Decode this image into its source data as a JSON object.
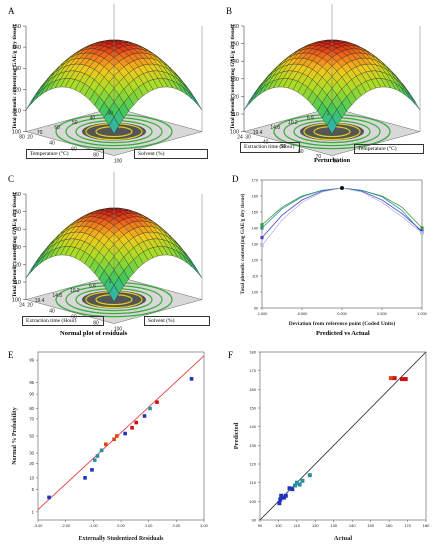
{
  "panels": {
    "A": {
      "letter": "A",
      "zlabel": "Total phenolic content(mg GAE/g dry tissue)",
      "zticks": [
        "150",
        "140",
        "130",
        "120",
        "110",
        "100"
      ],
      "left_label": "Temperature (°C)",
      "right_label": "Solvent (%)",
      "left_ticks": [
        "80",
        "70",
        "60",
        "50",
        "40",
        "30"
      ],
      "right_ticks": [
        "20",
        "40",
        "60",
        "80",
        "100"
      ]
    },
    "B": {
      "letter": "B",
      "zlabel": "Total phenolic content(mg GAE/g dry tissue)",
      "zticks": [
        "160",
        "150",
        "140",
        "130",
        "120",
        "110",
        "100"
      ],
      "left_label": "Extraction time (Hour)",
      "right_label": "Temperature (°C)",
      "left_ticks": [
        "24",
        "19.4",
        "14.8",
        "10.2",
        "5.6",
        "1"
      ],
      "right_ticks": [
        "30",
        "40",
        "50",
        "60",
        "70",
        "80"
      ],
      "caption": "Perturbation"
    },
    "C": {
      "letter": "C",
      "zlabel": "Total phenolic content(mg GAE/g dry tissue)",
      "zticks": [
        "160",
        "150",
        "140",
        "130",
        "120",
        "110",
        "100"
      ],
      "left_label": "Extraction time (Hour)",
      "right_label": "Solvent (%)",
      "left_ticks": [
        "24",
        "19.4",
        "14.8",
        "10.2",
        "5.6",
        "1"
      ],
      "right_ticks": [
        "20",
        "40",
        "60",
        "80",
        "100"
      ],
      "caption": "Normal plot of residuals"
    },
    "D": {
      "letter": "D",
      "title": "Predicted vs Actual"
    },
    "E": {
      "letter": "E"
    },
    "F": {
      "letter": "F"
    }
  },
  "chart_data": [
    {
      "panel": "D",
      "type": "line",
      "xlabel": "Deviation from reference point (Coded Units)",
      "ylabel": "Total phenolic content(mg GAE/g dry tissue)",
      "xlim": [
        -1,
        1
      ],
      "ylim": [
        90,
        170
      ],
      "xticks": [
        "-1.000",
        "-0.500",
        "0.000",
        "0.500",
        "1.000"
      ],
      "yticks": [
        "90",
        "100",
        "110",
        "120",
        "130",
        "140",
        "150",
        "160",
        "170"
      ],
      "x": [
        -1,
        -0.75,
        -0.5,
        -0.25,
        0,
        0.25,
        0.5,
        0.75,
        1
      ],
      "series": [
        {
          "color": "#3a9a3a",
          "values": [
            142,
            153,
            160,
            163.5,
            165,
            163.5,
            160,
            153,
            140
          ]
        },
        {
          "color": "#2a8fa0",
          "values": [
            140,
            152,
            159.5,
            163.5,
            165,
            163.5,
            159.5,
            151,
            137
          ]
        },
        {
          "color": "#4a4ac8",
          "values": [
            134,
            148,
            157.5,
            163,
            165,
            163,
            157.5,
            149,
            138
          ]
        },
        {
          "color": "#b7b7e0",
          "values": [
            129,
            145,
            156,
            162.5,
            165,
            162.5,
            156,
            147,
            137
          ]
        }
      ]
    },
    {
      "panel": "E",
      "type": "scatter",
      "xlabel": "Externally Studentized Residuals",
      "ylabel": "Normal % Probability",
      "xlim": [
        -3,
        3
      ],
      "xticks": [
        "-3.00",
        "-2.00",
        "-1.00",
        "0.00",
        "1.00",
        "2.00",
        "3.00"
      ],
      "yticks": [
        "1",
        "5",
        "10",
        "20",
        "30",
        "50",
        "70",
        "80",
        "90",
        "95",
        "99"
      ],
      "fit_line": {
        "x": [
          -3,
          3
        ],
        "y": [
          1.2,
          99.3
        ]
      },
      "points": [
        {
          "x": -2.6,
          "y": 3,
          "color": "#2233bb"
        },
        {
          "x": -1.3,
          "y": 10,
          "color": "#2233bb"
        },
        {
          "x": -1.05,
          "y": 15,
          "color": "#2233bb"
        },
        {
          "x": -0.95,
          "y": 23,
          "color": "#2a8fa0"
        },
        {
          "x": -0.85,
          "y": 27,
          "color": "#2a8fa0"
        },
        {
          "x": -0.7,
          "y": 33,
          "color": "#2a8fa0"
        },
        {
          "x": -0.55,
          "y": 40,
          "color": "#dd4411"
        },
        {
          "x": -0.25,
          "y": 46,
          "color": "#dd4411"
        },
        {
          "x": -0.15,
          "y": 50,
          "color": "#dd4411"
        },
        {
          "x": 0.15,
          "y": 53,
          "color": "#2233bb"
        },
        {
          "x": 0.4,
          "y": 60,
          "color": "#cc1111"
        },
        {
          "x": 0.55,
          "y": 66,
          "color": "#cc1111"
        },
        {
          "x": 0.85,
          "y": 73,
          "color": "#2233bb"
        },
        {
          "x": 1.05,
          "y": 80,
          "color": "#2a8fa0"
        },
        {
          "x": 1.3,
          "y": 85,
          "color": "#cc1111"
        },
        {
          "x": 2.55,
          "y": 96,
          "color": "#2233bb"
        }
      ]
    },
    {
      "panel": "F",
      "type": "scatter",
      "xlabel": "Actual",
      "ylabel": "Predicted",
      "xlim": [
        90,
        180
      ],
      "ylim": [
        90,
        180
      ],
      "xticks": [
        "90",
        "100",
        "110",
        "120",
        "130",
        "140",
        "150",
        "160",
        "170",
        "180"
      ],
      "yticks": [
        "90",
        "100",
        "110",
        "120",
        "130",
        "140",
        "150",
        "160",
        "170",
        "180"
      ],
      "fit_line": {
        "x": [
          90,
          180
        ],
        "y": [
          90,
          180
        ]
      },
      "points": [
        {
          "x": 100.5,
          "y": 99,
          "color": "#2233bb"
        },
        {
          "x": 101,
          "y": 101,
          "color": "#2233bb"
        },
        {
          "x": 102,
          "y": 102,
          "color": "#2233bb"
        },
        {
          "x": 101.5,
          "y": 103,
          "color": "#2233bb"
        },
        {
          "x": 103,
          "y": 102,
          "color": "#2233bb"
        },
        {
          "x": 104,
          "y": 103,
          "color": "#2233bb"
        },
        {
          "x": 106,
          "y": 107,
          "color": "#2233bb"
        },
        {
          "x": 107.5,
          "y": 106.5,
          "color": "#2233bb"
        },
        {
          "x": 109,
          "y": 108.5,
          "color": "#2a8fa0"
        },
        {
          "x": 110,
          "y": 110,
          "color": "#2a8fa0"
        },
        {
          "x": 111.5,
          "y": 109,
          "color": "#2a8fa0"
        },
        {
          "x": 113,
          "y": 111,
          "color": "#2a8fa0"
        },
        {
          "x": 117,
          "y": 114,
          "color": "#2a8fa0"
        },
        {
          "x": 161,
          "y": 166,
          "color": "#dd4411"
        },
        {
          "x": 163,
          "y": 166,
          "color": "#cc1111"
        },
        {
          "x": 167,
          "y": 165.5,
          "color": "#cc1111"
        },
        {
          "x": 169,
          "y": 165.5,
          "color": "#cc1111"
        }
      ]
    }
  ]
}
